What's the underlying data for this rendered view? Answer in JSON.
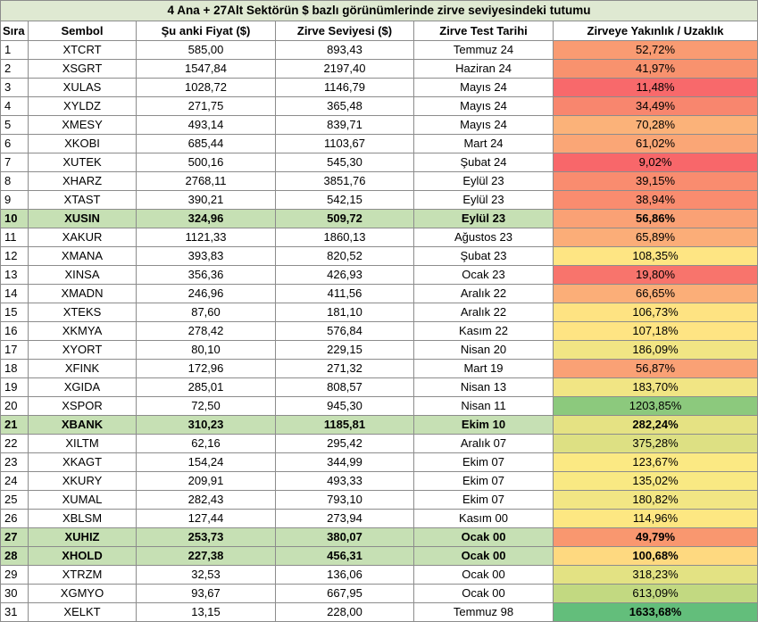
{
  "title": "4 Ana + 27Alt Sektörün $ bazlı görünümlerinde zirve seviyesindeki tutumu",
  "headers": [
    "Sıra",
    "Sembol",
    "Şu anki Fiyat ($)",
    "Zirve Seviyesi ($)",
    "Zirve Test Tarihi",
    "Zirveye Yakınlık /  Uzaklık"
  ],
  "rows": [
    {
      "rank": "1",
      "symbol": "XTCRT",
      "price": "585,00",
      "peak": "893,43",
      "date": "Temmuz 24",
      "pct": "52,72%",
      "color": "#f99b72",
      "highlight": false
    },
    {
      "rank": "2",
      "symbol": "XSGRT",
      "price": "1547,84",
      "peak": "2197,40",
      "date": "Haziran 24",
      "pct": "41,97%",
      "color": "#f8926e",
      "highlight": false
    },
    {
      "rank": "3",
      "symbol": "XULAS",
      "price": "1028,72",
      "peak": "1146,79",
      "date": "Mayıs 24",
      "pct": "11,48%",
      "color": "#f8696b",
      "highlight": false
    },
    {
      "rank": "4",
      "symbol": "XYLDZ",
      "price": "271,75",
      "peak": "365,48",
      "date": "Mayıs 24",
      "pct": "34,49%",
      "color": "#f8866e",
      "highlight": false
    },
    {
      "rank": "5",
      "symbol": "XMESY",
      "price": "493,14",
      "peak": "839,71",
      "date": "Mayıs 24",
      "pct": "70,28%",
      "color": "#fbb279",
      "highlight": false
    },
    {
      "rank": "6",
      "symbol": "XKOBI",
      "price": "685,44",
      "peak": "1103,67",
      "date": "Mart 24",
      "pct": "61,02%",
      "color": "#faa676",
      "highlight": false
    },
    {
      "rank": "7",
      "symbol": "XUTEK",
      "price": "500,16",
      "peak": "545,30",
      "date": "Şubat 24",
      "pct": "9,02%",
      "color": "#f8676a",
      "highlight": false
    },
    {
      "rank": "8",
      "symbol": "XHARZ",
      "price": "2768,11",
      "peak": "3851,76",
      "date": "Eylül 23",
      "pct": "39,15%",
      "color": "#f98c6f",
      "highlight": false
    },
    {
      "rank": "9",
      "symbol": "XTAST",
      "price": "390,21",
      "peak": "542,15",
      "date": "Eylül 23",
      "pct": "38,94%",
      "color": "#f98c6f",
      "highlight": false
    },
    {
      "rank": "10",
      "symbol": "XUSIN",
      "price": "324,96",
      "peak": "509,72",
      "date": "Eylül 23",
      "pct": "56,86%",
      "color": "#faa175",
      "highlight": true
    },
    {
      "rank": "11",
      "symbol": "XAKUR",
      "price": "1121,33",
      "peak": "1860,13",
      "date": "Ağustos 23",
      "pct": "65,89%",
      "color": "#fbad78",
      "highlight": false
    },
    {
      "rank": "12",
      "symbol": "XMANA",
      "price": "393,83",
      "peak": "820,52",
      "date": "Şubat 23",
      "pct": "108,35%",
      "color": "#fee583",
      "highlight": false
    },
    {
      "rank": "13",
      "symbol": "XINSA",
      "price": "356,36",
      "peak": "426,93",
      "date": "Ocak 23",
      "pct": "19,80%",
      "color": "#f8746c",
      "highlight": false
    },
    {
      "rank": "14",
      "symbol": "XMADN",
      "price": "246,96",
      "peak": "411,56",
      "date": "Aralık 22",
      "pct": "66,65%",
      "color": "#fbae78",
      "highlight": false
    },
    {
      "rank": "15",
      "symbol": "XTEKS",
      "price": "87,60",
      "peak": "181,10",
      "date": "Aralık 22",
      "pct": "106,73%",
      "color": "#fee382",
      "highlight": false
    },
    {
      "rank": "16",
      "symbol": "XKMYA",
      "price": "278,42",
      "peak": "576,84",
      "date": "Kasım 22",
      "pct": "107,18%",
      "color": "#fee483",
      "highlight": false
    },
    {
      "rank": "17",
      "symbol": "XYORT",
      "price": "80,10",
      "peak": "229,15",
      "date": "Nisan 20",
      "pct": "186,09%",
      "color": "#f1e584",
      "highlight": false
    },
    {
      "rank": "18",
      "symbol": "XFINK",
      "price": "172,96",
      "peak": "271,32",
      "date": "Mart 19",
      "pct": "56,87%",
      "color": "#faa175",
      "highlight": false
    },
    {
      "rank": "19",
      "symbol": "XGIDA",
      "price": "285,01",
      "peak": "808,57",
      "date": "Nisan 13",
      "pct": "183,70%",
      "color": "#f1e584",
      "highlight": false
    },
    {
      "rank": "20",
      "symbol": "XSPOR",
      "price": "72,50",
      "peak": "945,30",
      "date": "Nisan 11",
      "pct": "1203,85%",
      "color": "#8cc97d",
      "highlight": false
    },
    {
      "rank": "21",
      "symbol": "XBANK",
      "price": "310,23",
      "peak": "1185,81",
      "date": "Ekim 10",
      "pct": "282,24%",
      "color": "#e5e283",
      "highlight": true
    },
    {
      "rank": "22",
      "symbol": "XILTM",
      "price": "62,16",
      "peak": "295,42",
      "date": "Aralık 07",
      "pct": "375,28%",
      "color": "#dde083",
      "highlight": false
    },
    {
      "rank": "23",
      "symbol": "XKAGT",
      "price": "154,24",
      "peak": "344,99",
      "date": "Ekim 07",
      "pct": "123,67%",
      "color": "#fbe983",
      "highlight": false
    },
    {
      "rank": "24",
      "symbol": "XKURY",
      "price": "209,91",
      "peak": "493,33",
      "date": "Ekim 07",
      "pct": "135,02%",
      "color": "#f9e983",
      "highlight": false
    },
    {
      "rank": "25",
      "symbol": "XUMAL",
      "price": "282,43",
      "peak": "793,10",
      "date": "Ekim 07",
      "pct": "180,82%",
      "color": "#f2e684",
      "highlight": false
    },
    {
      "rank": "26",
      "symbol": "XBLSM",
      "price": "127,44",
      "peak": "273,94",
      "date": "Kasım 00",
      "pct": "114,96%",
      "color": "#fde782",
      "highlight": false
    },
    {
      "rank": "27",
      "symbol": "XUHIZ",
      "price": "253,73",
      "peak": "380,07",
      "date": "Ocak 00",
      "pct": "49,79%",
      "color": "#f9976f",
      "highlight": true
    },
    {
      "rank": "28",
      "symbol": "XHOLD",
      "price": "227,38",
      "peak": "456,31",
      "date": "Ocak 00",
      "pct": "100,68%",
      "color": "#fed980",
      "highlight": true
    },
    {
      "rank": "29",
      "symbol": "XTRZM",
      "price": "32,53",
      "peak": "136,06",
      "date": "Ocak 00",
      "pct": "318,23%",
      "color": "#e3e283",
      "highlight": false
    },
    {
      "rank": "30",
      "symbol": "XGMYO",
      "price": "93,67",
      "peak": "667,95",
      "date": "Ocak 00",
      "pct": "613,09%",
      "color": "#c2d981",
      "highlight": false
    },
    {
      "rank": "31",
      "symbol": "XELKT",
      "price": "13,15",
      "peak": "228,00",
      "date": "Temmuz 98",
      "pct": "1633,68%",
      "color": "#63be7b",
      "highlight": false
    }
  ]
}
